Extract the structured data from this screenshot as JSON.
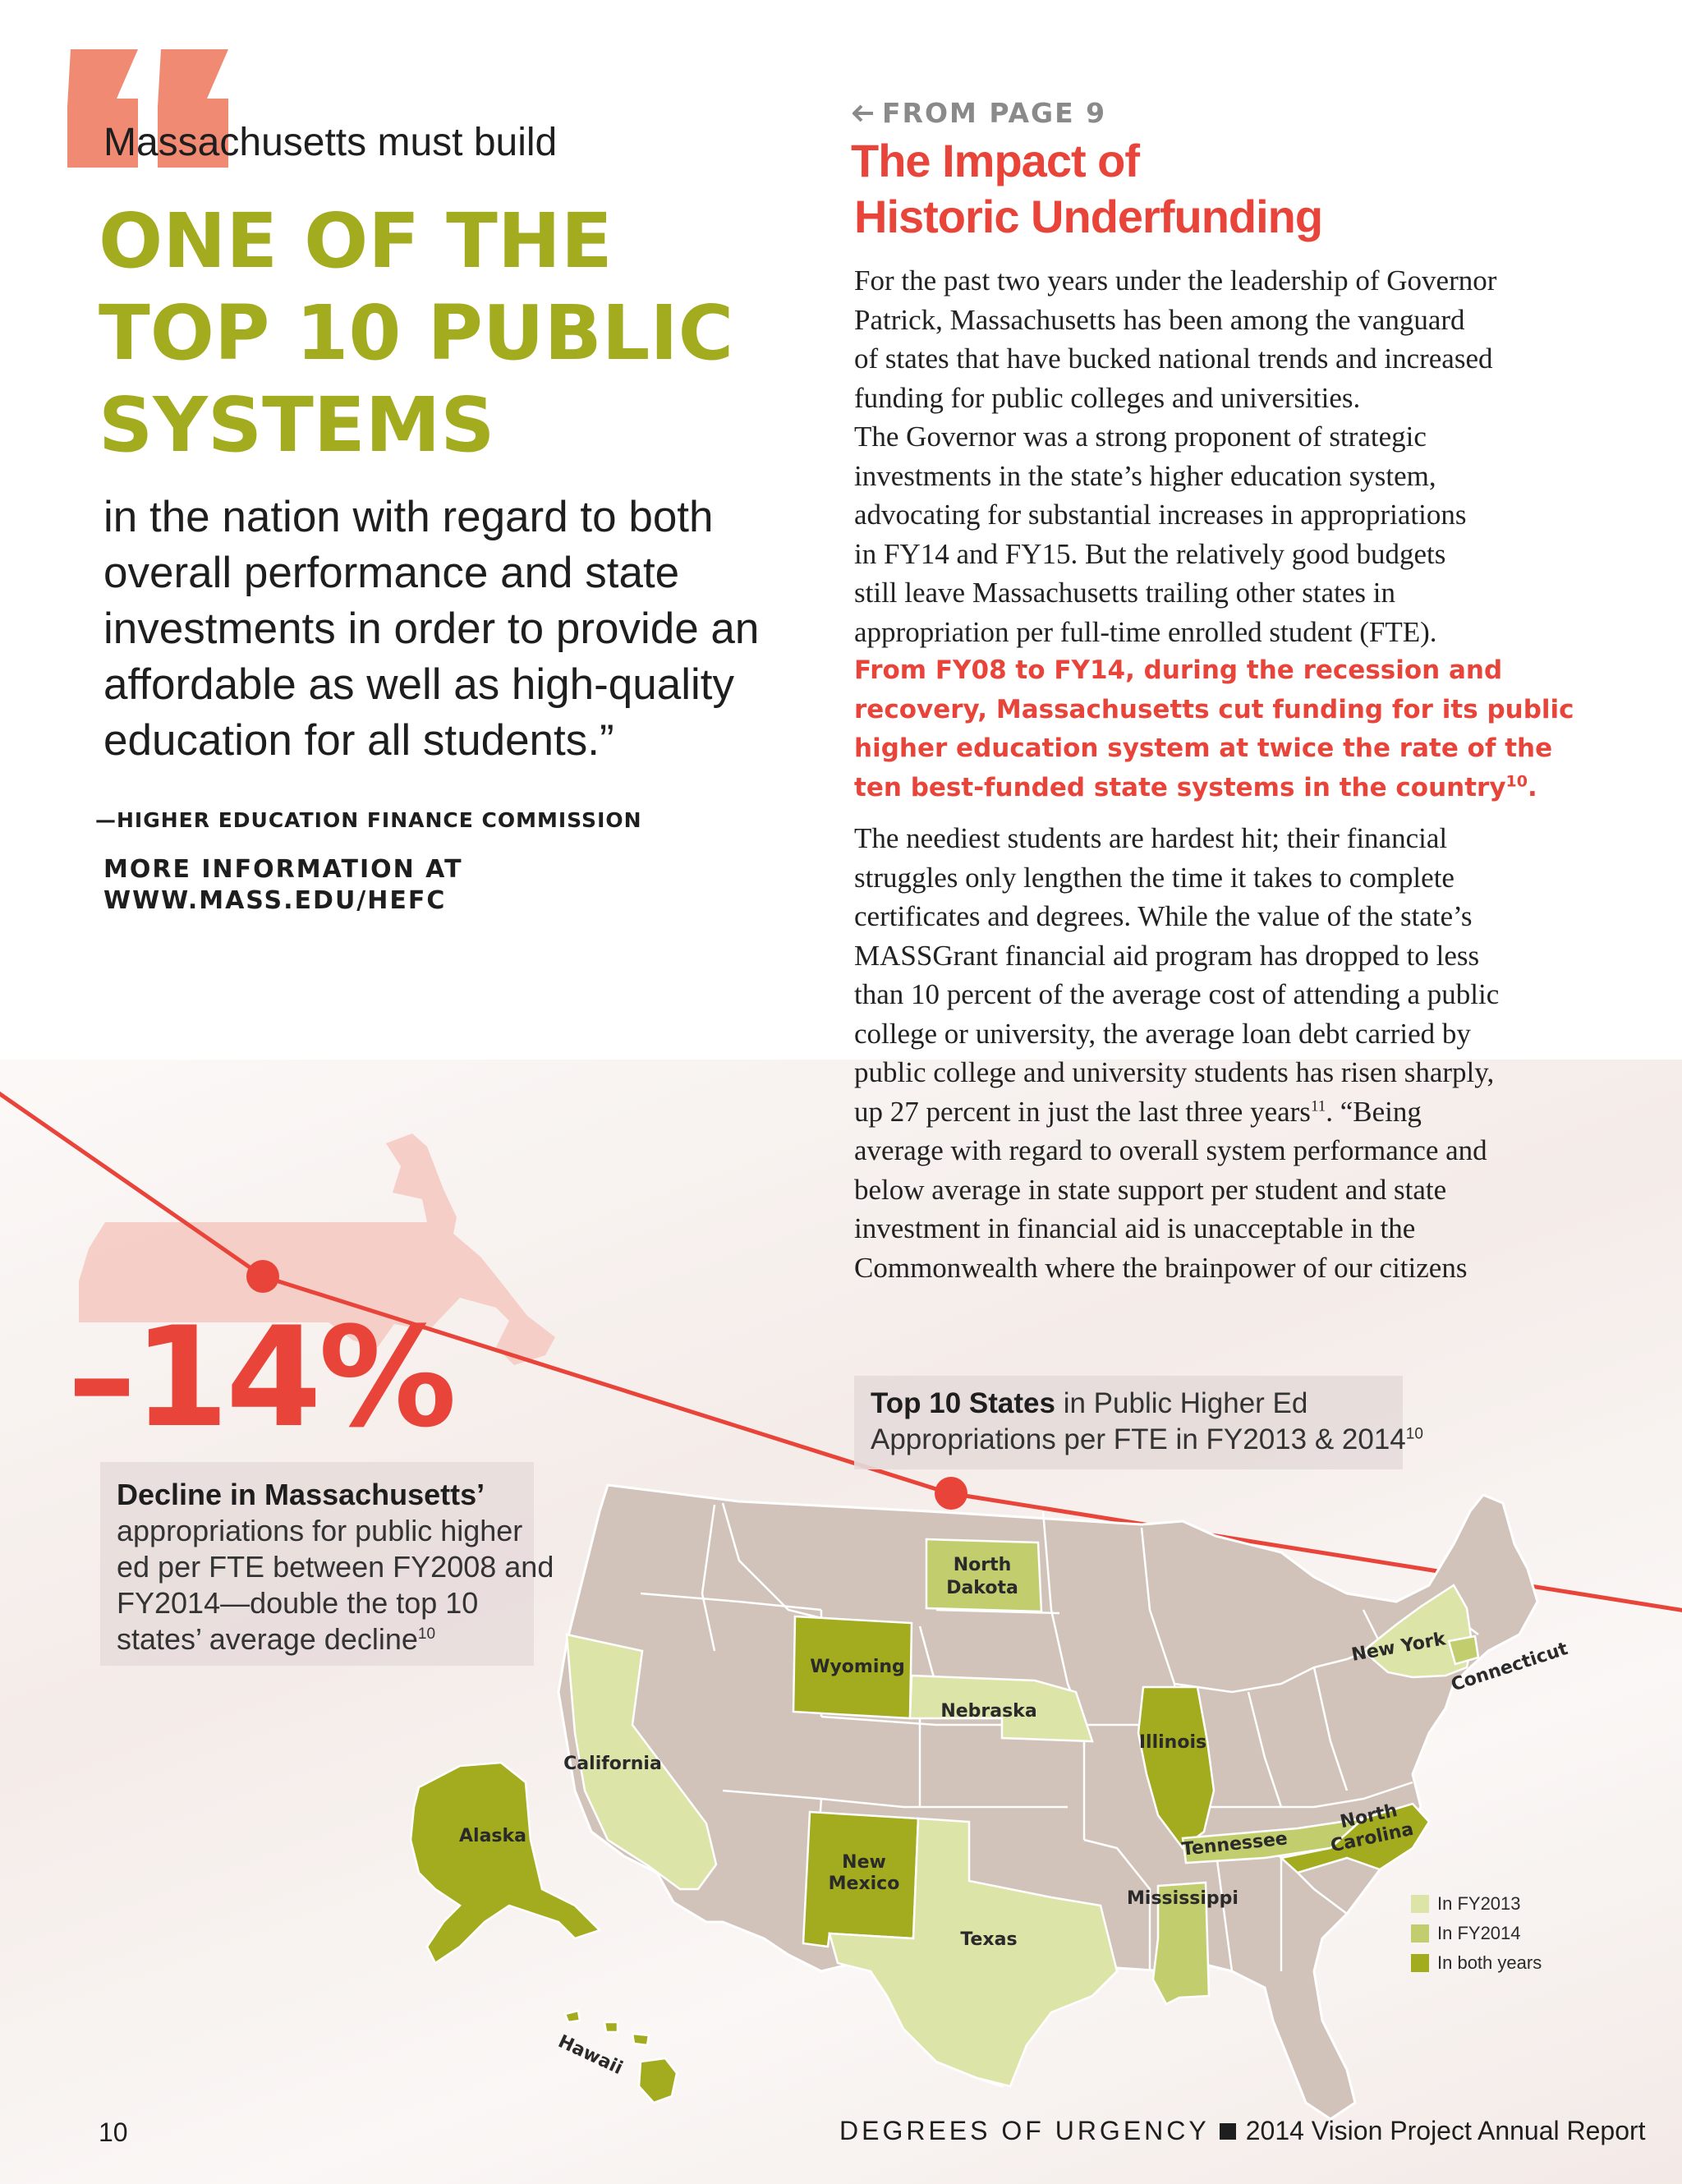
{
  "quote": {
    "lead": "Massachusetts must build",
    "headline_lines": [
      "ONE OF THE",
      "TOP 10 PUBLIC",
      "SYSTEMS"
    ],
    "body_lines": [
      "in the nation with regard to both",
      "overall performance and state",
      "investments in order to provide an",
      "affordable as well as high-quality",
      "education for all students.”"
    ],
    "attribution": "—HIGHER EDUCATION FINANCE COMMISSION",
    "more_info_lines": [
      "MORE INFORMATION AT",
      "WWW.MASS.EDU/HEFC"
    ]
  },
  "article": {
    "from_page": "FROM PAGE 9",
    "title_lines": [
      "The Impact of",
      "Historic Underfunding"
    ],
    "para1_lines": [
      "For the past two years under the leadership of Governor",
      "Patrick, Massachusetts has been among the vanguard",
      "of states that have bucked national trends and increased",
      "funding for public colleges and universities.",
      "The Governor was a strong proponent of strategic",
      "investments in the state’s higher education system,",
      "advocating for substantial increases in appropriations",
      "in FY14 and FY15. But the relatively good budgets",
      "still leave Massachusetts trailing other states in",
      "appropriation per full-time enrolled student (FTE)."
    ],
    "highlight_lines": [
      "From FY08 to FY14, during the recession and",
      "recovery, Massachusetts cut funding for its public",
      "higher education system at twice the rate of the"
    ],
    "highlight_last": "ten best-funded state systems in the country",
    "highlight_ref": "10",
    "highlight_end": ".",
    "para2_lines_a": [
      "The neediest students are hardest hit; their financial",
      "struggles only lengthen the time it takes to complete",
      "certificates and degrees. While the value of the state’s",
      "MASSGrant financial aid program has dropped to less",
      "than 10 percent of the average cost of attending a public",
      "college or university, the average loan debt carried by",
      "public college and university students has risen sharply,"
    ],
    "para2_ref_line_before": "up 27 percent in just the last three years",
    "para2_ref": "11",
    "para2_ref_line_after": ". “Being",
    "para2_lines_b": [
      "average with regard to overall system performance and",
      "below average in state support per student and state",
      "investment in financial aid is unacceptable in the",
      "Commonwealth where the brainpower of our citizens"
    ]
  },
  "stat": {
    "value": "–14%",
    "label_bold": "Decline in Massachusetts’",
    "label_lines": [
      "appropriations for public higher",
      "ed per FTE between FY2008 and",
      "FY2014—double the top 10"
    ],
    "label_last": "states’ average decline",
    "label_ref": "10"
  },
  "map": {
    "title_bold": "Top 10 States",
    "title_rest": " in Public Higher Ed",
    "title_line2": "Appropriations per FTE in FY2013 & 2014",
    "title_ref": "10",
    "states": {
      "north_dakota": [
        "North",
        "Dakota"
      ],
      "wyoming": "Wyoming",
      "nebraska": "Nebraska",
      "california": "California",
      "illinois": "Illinois",
      "new_york": "New York",
      "connecticut": "Connecticut",
      "alaska": "Alaska",
      "new_mexico": [
        "New",
        "Mexico"
      ],
      "texas": "Texas",
      "tennessee": "Tennessee",
      "north_carolina": [
        "North",
        "Carolina"
      ],
      "mississippi": "Mississippi",
      "hawaii": "Hawaii"
    },
    "legend": [
      {
        "label": "In FY2013",
        "color": "#dce4a8"
      },
      {
        "label": "In FY2014",
        "color": "#c2ce6e"
      },
      {
        "label": "In both years",
        "color": "#a3ac1f"
      }
    ],
    "colors": {
      "base_state": "#d2c3ba",
      "accent_red": "#e8443a",
      "quote_mark": "#f08a72",
      "ma_silhouette": "#f4c8c0"
    }
  },
  "footer": {
    "page_number": "10",
    "publication": "DEGREES OF URGENCY",
    "report": "2014 Vision Project Annual Report"
  }
}
